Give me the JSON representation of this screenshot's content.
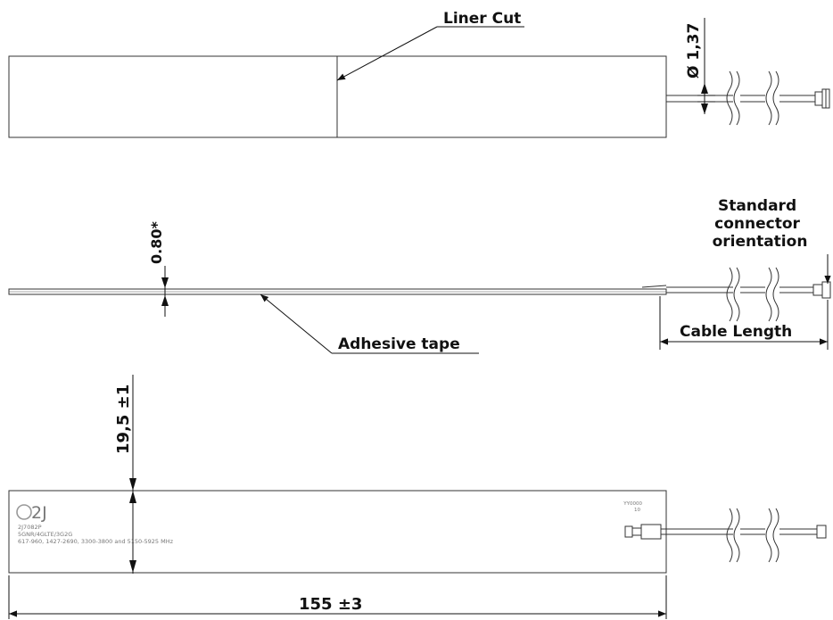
{
  "annotations": {
    "liner_cut": "Liner Cut",
    "cable_diameter": "Ø 1,37",
    "thickness": "0.80*",
    "adhesive_tape": "Adhesive tape",
    "connector_orientation": [
      "Standard",
      "connector",
      "orientation"
    ],
    "cable_length": "Cable Length",
    "width": "19,5 ±1",
    "length": "155 ±3"
  },
  "label_print": {
    "logo": "2J",
    "part_number": "2J7082P",
    "bands_line": "5GNR/4GLTE/3G2G",
    "frequencies": "617-960, 1427-2690, 3300-3800 and 5150-5925 MHz",
    "date_code": "YY0000",
    "rev": "10"
  }
}
